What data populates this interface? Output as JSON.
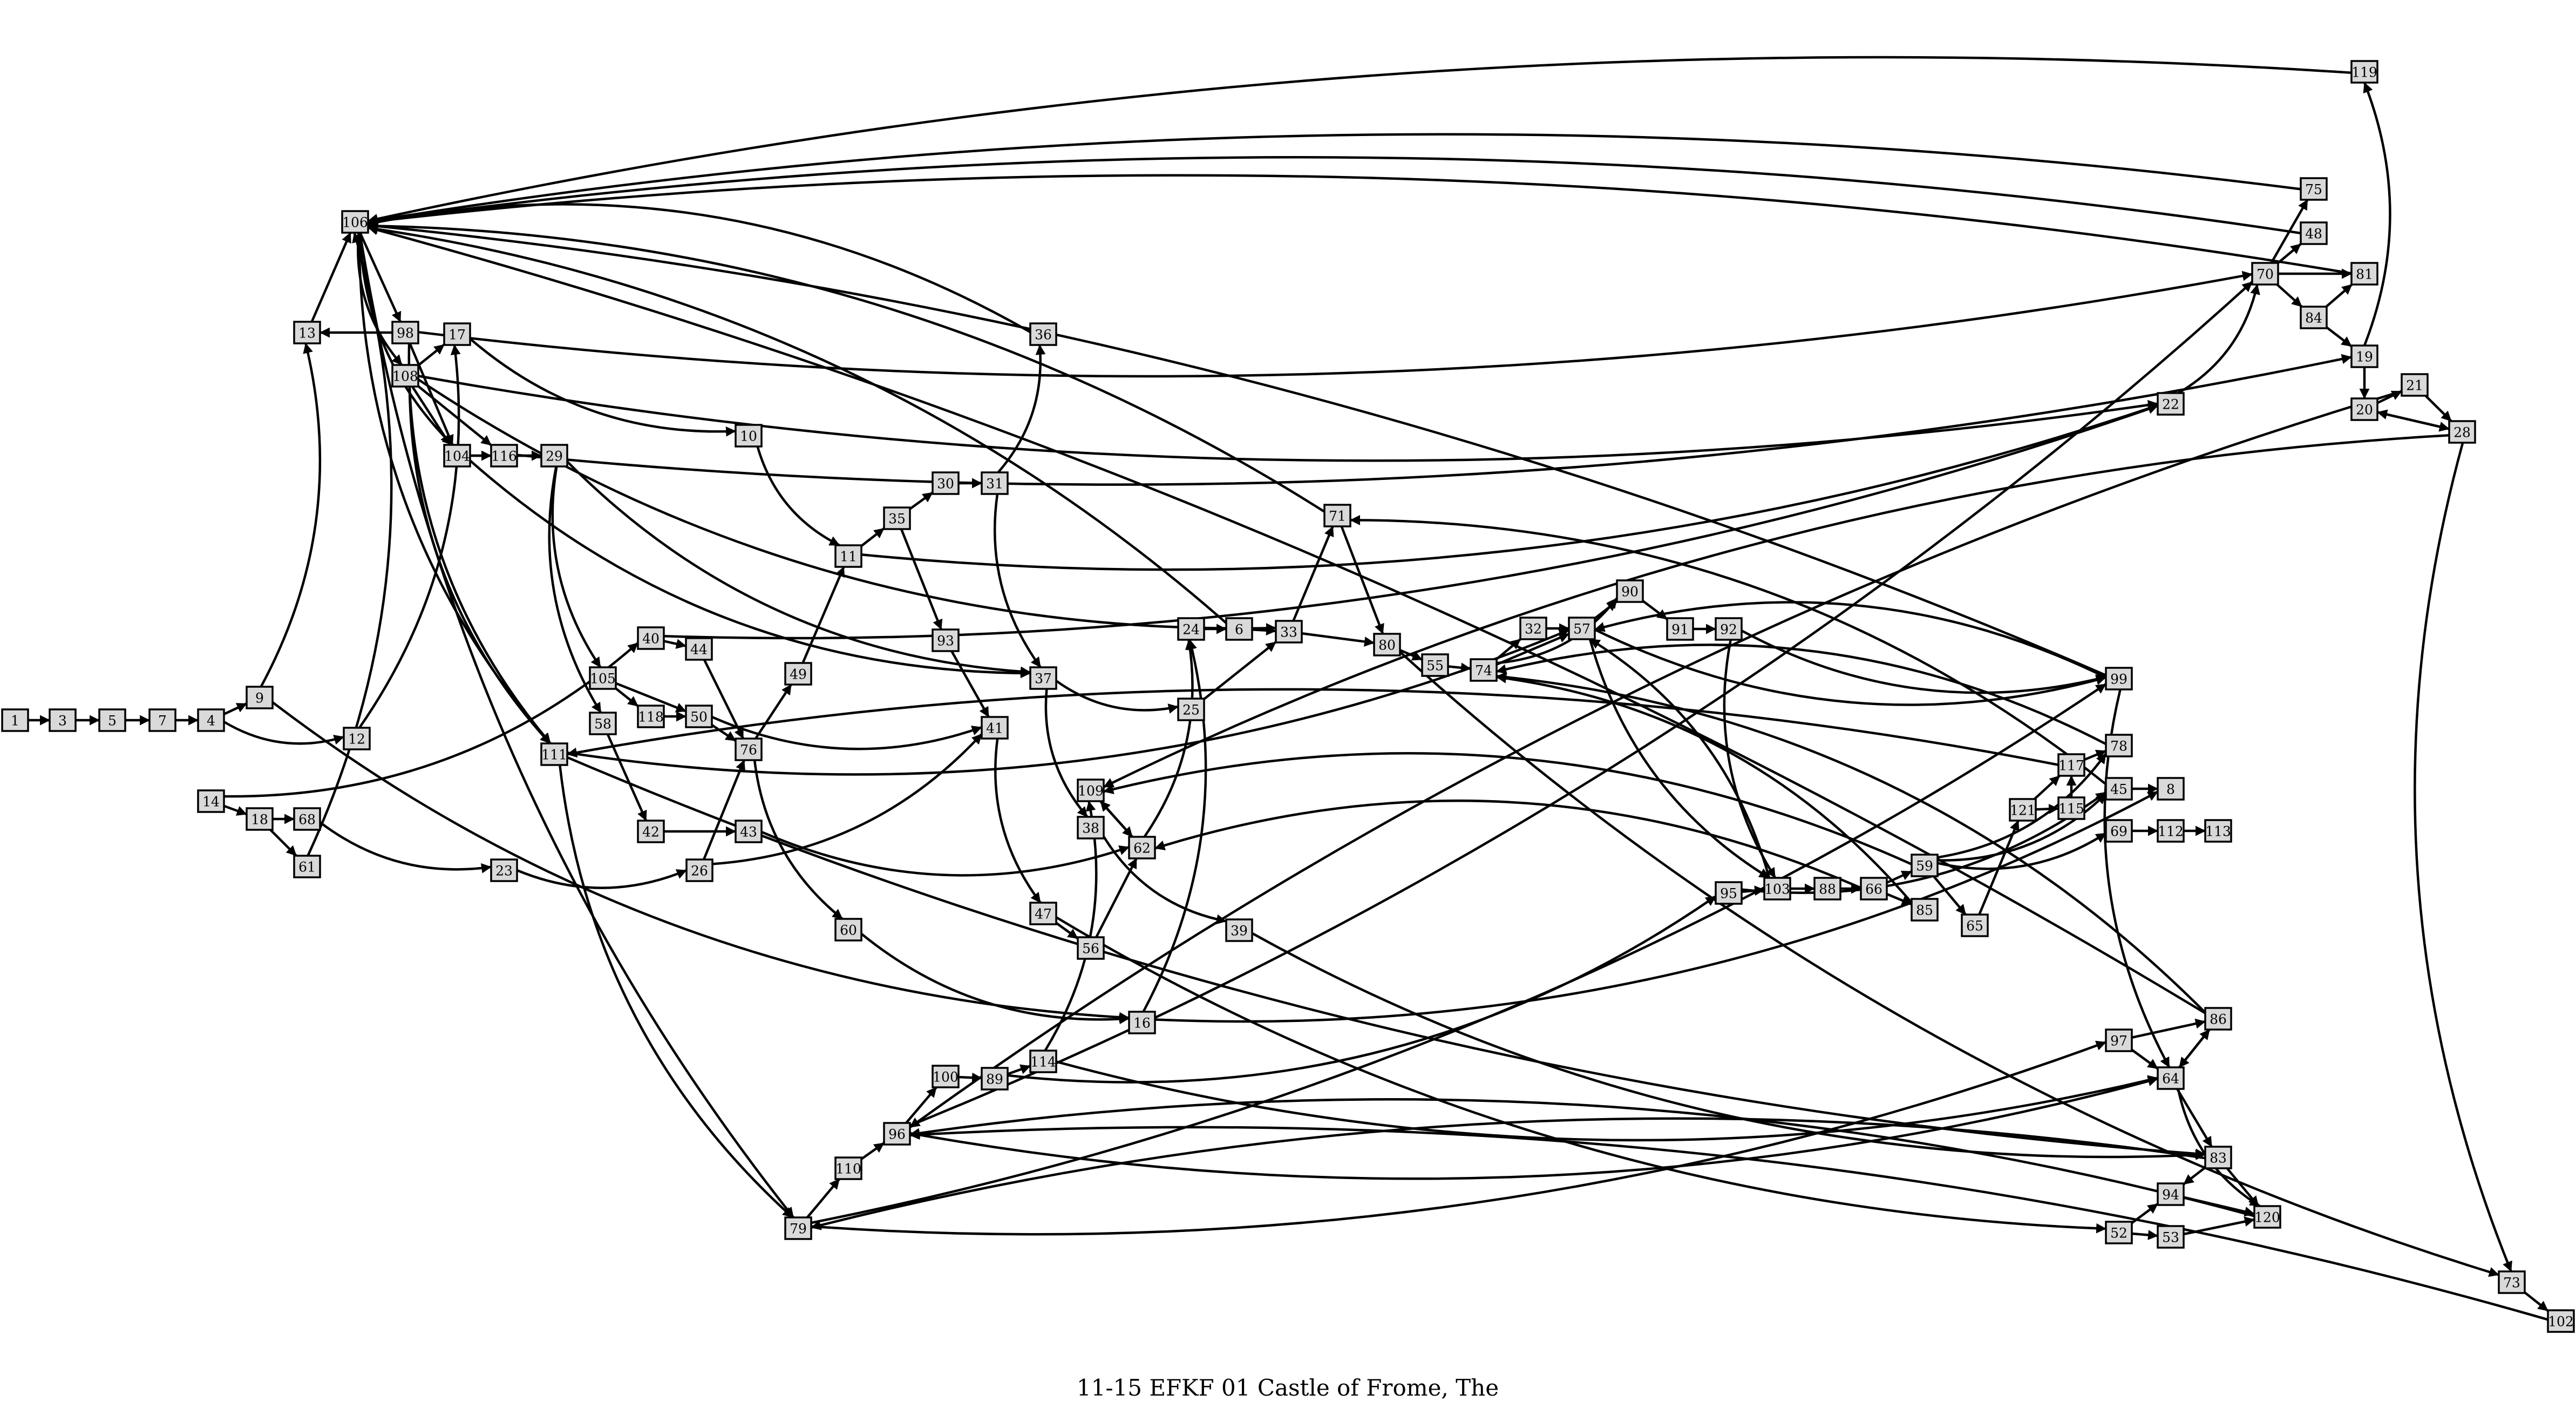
{
  "diagram": {
    "title": "11-15 EFKF 01 Castle of Frome, The",
    "node_fill": "#d9d9d9",
    "stroke": "#000000",
    "nodes": [
      "1",
      "3",
      "5",
      "7",
      "4",
      "9",
      "12",
      "13",
      "106",
      "98",
      "108",
      "17",
      "104",
      "116",
      "29",
      "10",
      "11",
      "35",
      "30",
      "31",
      "36",
      "93",
      "37",
      "41",
      "47",
      "56",
      "38",
      "39",
      "62",
      "109",
      "111",
      "105",
      "118",
      "50",
      "58",
      "76",
      "49",
      "60",
      "40",
      "44",
      "42",
      "43",
      "26",
      "23",
      "14",
      "18",
      "68",
      "61",
      "16",
      "114",
      "89",
      "100",
      "96",
      "110",
      "79",
      "24",
      "6",
      "33",
      "71",
      "80",
      "55",
      "74",
      "32",
      "57",
      "90",
      "91",
      "92",
      "99",
      "78",
      "45",
      "8",
      "113",
      "112",
      "69",
      "115",
      "117",
      "121",
      "59",
      "65",
      "66",
      "85",
      "88",
      "103",
      "95",
      "25",
      "22",
      "70",
      "75",
      "48",
      "81",
      "84",
      "19",
      "119",
      "20",
      "21",
      "28",
      "73",
      "102",
      "97",
      "86",
      "64",
      "83",
      "94",
      "53",
      "120",
      "52"
    ],
    "edges": [
      [
        "1",
        "3"
      ],
      [
        "3",
        "5"
      ],
      [
        "5",
        "7"
      ],
      [
        "7",
        "4"
      ],
      [
        "4",
        "9"
      ],
      [
        "4",
        "12"
      ],
      [
        "9",
        "13"
      ],
      [
        "9",
        "16"
      ],
      [
        "13",
        "106"
      ],
      [
        "12",
        "17"
      ],
      [
        "106",
        "98"
      ],
      [
        "106",
        "108"
      ],
      [
        "106",
        "104"
      ],
      [
        "106",
        "111"
      ],
      [
        "106",
        "79"
      ],
      [
        "98",
        "13"
      ],
      [
        "98",
        "104"
      ],
      [
        "98",
        "111"
      ],
      [
        "98",
        "70"
      ],
      [
        "108",
        "104"
      ],
      [
        "108",
        "116"
      ],
      [
        "108",
        "33"
      ],
      [
        "108",
        "22"
      ],
      [
        "108",
        "17"
      ],
      [
        "108",
        "111"
      ],
      [
        "17",
        "10"
      ],
      [
        "104",
        "116"
      ],
      [
        "104",
        "29"
      ],
      [
        "104",
        "37"
      ],
      [
        "116",
        "29"
      ],
      [
        "116",
        "19"
      ],
      [
        "29",
        "105"
      ],
      [
        "29",
        "58"
      ],
      [
        "29",
        "37"
      ],
      [
        "10",
        "11"
      ],
      [
        "11",
        "35"
      ],
      [
        "11",
        "22"
      ],
      [
        "35",
        "30"
      ],
      [
        "35",
        "93"
      ],
      [
        "30",
        "31"
      ],
      [
        "31",
        "36"
      ],
      [
        "31",
        "37"
      ],
      [
        "36",
        "106"
      ],
      [
        "93",
        "41"
      ],
      [
        "37",
        "25"
      ],
      [
        "37",
        "38"
      ],
      [
        "41",
        "47"
      ],
      [
        "47",
        "56"
      ],
      [
        "47",
        "52"
      ],
      [
        "56",
        "62"
      ],
      [
        "38",
        "39"
      ],
      [
        "39",
        "83"
      ],
      [
        "62",
        "24"
      ],
      [
        "62",
        "109"
      ],
      [
        "109",
        "62"
      ],
      [
        "105",
        "118"
      ],
      [
        "105",
        "50"
      ],
      [
        "118",
        "50"
      ],
      [
        "50",
        "76"
      ],
      [
        "50",
        "41"
      ],
      [
        "58",
        "42"
      ],
      [
        "76",
        "49"
      ],
      [
        "76",
        "60"
      ],
      [
        "49",
        "11"
      ],
      [
        "60",
        "16"
      ],
      [
        "40",
        "44"
      ],
      [
        "40",
        "22"
      ],
      [
        "44",
        "76"
      ],
      [
        "42",
        "43"
      ],
      [
        "43",
        "62"
      ],
      [
        "26",
        "76"
      ],
      [
        "26",
        "41"
      ],
      [
        "23",
        "26"
      ],
      [
        "14",
        "18"
      ],
      [
        "14",
        "40"
      ],
      [
        "18",
        "68"
      ],
      [
        "18",
        "61"
      ],
      [
        "68",
        "23"
      ],
      [
        "61",
        "106"
      ],
      [
        "16",
        "24"
      ],
      [
        "16",
        "8"
      ],
      [
        "114",
        "109"
      ],
      [
        "114",
        "64"
      ],
      [
        "89",
        "114"
      ],
      [
        "89",
        "95"
      ],
      [
        "100",
        "89"
      ],
      [
        "96",
        "100"
      ],
      [
        "96",
        "70"
      ],
      [
        "96",
        "64"
      ],
      [
        "110",
        "96"
      ],
      [
        "79",
        "110"
      ],
      [
        "79",
        "99"
      ],
      [
        "79",
        "97"
      ],
      [
        "24",
        "6"
      ],
      [
        "6",
        "33"
      ],
      [
        "6",
        "106"
      ],
      [
        "33",
        "71"
      ],
      [
        "33",
        "80"
      ],
      [
        "71",
        "80"
      ],
      [
        "71",
        "106"
      ],
      [
        "80",
        "55"
      ],
      [
        "80",
        "73"
      ],
      [
        "55",
        "74"
      ],
      [
        "74",
        "32"
      ],
      [
        "74",
        "57"
      ],
      [
        "74",
        "90"
      ],
      [
        "32",
        "57"
      ],
      [
        "57",
        "90"
      ],
      [
        "57",
        "103"
      ],
      [
        "57",
        "99"
      ],
      [
        "90",
        "91"
      ],
      [
        "91",
        "92"
      ],
      [
        "92",
        "99"
      ],
      [
        "92",
        "103"
      ],
      [
        "99",
        "57"
      ],
      [
        "99",
        "64"
      ],
      [
        "99",
        "106"
      ],
      [
        "78",
        "74"
      ],
      [
        "45",
        "8"
      ],
      [
        "45",
        "71"
      ],
      [
        "112",
        "113"
      ],
      [
        "69",
        "112"
      ],
      [
        "115",
        "117"
      ],
      [
        "117",
        "78"
      ],
      [
        "117",
        "111"
      ],
      [
        "121",
        "117"
      ],
      [
        "121",
        "115"
      ],
      [
        "59",
        "78"
      ],
      [
        "59",
        "45"
      ],
      [
        "59",
        "69"
      ],
      [
        "59",
        "65"
      ],
      [
        "59",
        "109"
      ],
      [
        "65",
        "121"
      ],
      [
        "66",
        "59"
      ],
      [
        "66",
        "85"
      ],
      [
        "85",
        "74"
      ],
      [
        "88",
        "66"
      ],
      [
        "103",
        "88"
      ],
      [
        "103",
        "57"
      ],
      [
        "95",
        "103"
      ],
      [
        "95",
        "45"
      ],
      [
        "25",
        "33"
      ],
      [
        "22",
        "70"
      ],
      [
        "70",
        "75"
      ],
      [
        "70",
        "48"
      ],
      [
        "70",
        "81"
      ],
      [
        "70",
        "84"
      ],
      [
        "75",
        "106"
      ],
      [
        "48",
        "106"
      ],
      [
        "81",
        "106"
      ],
      [
        "84",
        "81"
      ],
      [
        "84",
        "19"
      ],
      [
        "19",
        "20"
      ],
      [
        "19",
        "119"
      ],
      [
        "119",
        "106"
      ],
      [
        "20",
        "21"
      ],
      [
        "20",
        "28"
      ],
      [
        "21",
        "28"
      ],
      [
        "21",
        "96"
      ],
      [
        "28",
        "20"
      ],
      [
        "28",
        "73"
      ],
      [
        "28",
        "109"
      ],
      [
        "73",
        "102"
      ],
      [
        "102",
        "96"
      ],
      [
        "97",
        "86"
      ],
      [
        "97",
        "64"
      ],
      [
        "86",
        "64"
      ],
      [
        "86",
        "106"
      ],
      [
        "86",
        "74"
      ],
      [
        "64",
        "86"
      ],
      [
        "64",
        "83"
      ],
      [
        "64",
        "120"
      ],
      [
        "83",
        "94"
      ],
      [
        "83",
        "120"
      ],
      [
        "83",
        "79"
      ],
      [
        "94",
        "120"
      ],
      [
        "53",
        "120"
      ],
      [
        "52",
        "94"
      ],
      [
        "52",
        "53"
      ],
      [
        "120",
        "96"
      ],
      [
        "111",
        "57"
      ],
      [
        "111",
        "79"
      ],
      [
        "111",
        "83"
      ],
      [
        "66",
        "62"
      ]
    ]
  }
}
